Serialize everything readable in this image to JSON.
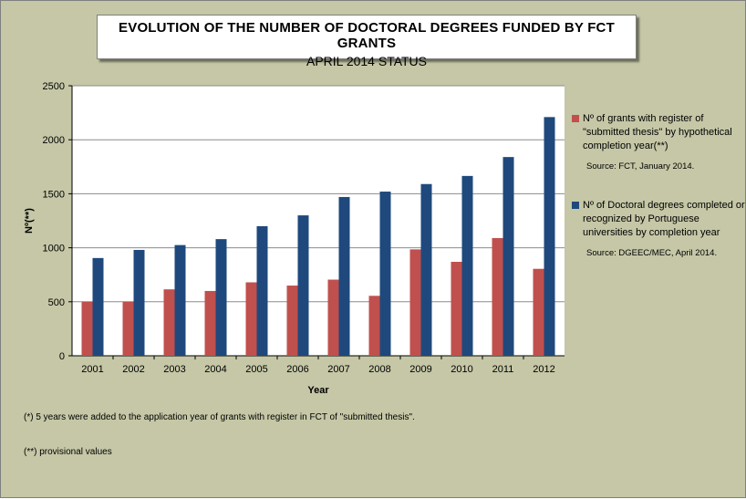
{
  "title": {
    "line1": "EVOLUTION OF THE NUMBER OF DOCTORAL DEGREES FUNDED BY FCT GRANTS",
    "line2": "APRIL 2014 STATUS"
  },
  "chart_data": {
    "type": "bar",
    "categories": [
      "2001",
      "2002",
      "2003",
      "2004",
      "2005",
      "2006",
      "2007",
      "2008",
      "2009",
      "2010",
      "2011",
      "2012"
    ],
    "series": [
      {
        "name": "Nº of grants with register of \"submitted thesis\" by hypothetical completion year(**)",
        "source": "Source: FCT, January 2014.",
        "color": "#c0504d",
        "values": [
          500,
          500,
          615,
          600,
          680,
          650,
          705,
          555,
          985,
          870,
          1090,
          805
        ]
      },
      {
        "name": "Nº of Doctoral degrees completed or recognized by Portuguese universities by completion year",
        "source": "Source: DGEEC/MEC, April 2014.",
        "color": "#1f497d",
        "values": [
          905,
          980,
          1025,
          1080,
          1200,
          1300,
          1470,
          1520,
          1590,
          1665,
          1840,
          2210
        ]
      }
    ],
    "xlabel": "Year",
    "ylabel": "Nº(**)",
    "ylim": [
      0,
      2500
    ],
    "yticks": [
      0,
      500,
      1000,
      1500,
      2000,
      2500
    ],
    "grid": true,
    "legend_position": "right"
  },
  "footnotes": [
    "(*) 5 years were added to  the application year of grants with register in FCT of \"submitted thesis\".",
    "(**) provisional values"
  ],
  "colors": {
    "background": "#c5c7a6",
    "plot_area": "#ffffff"
  }
}
